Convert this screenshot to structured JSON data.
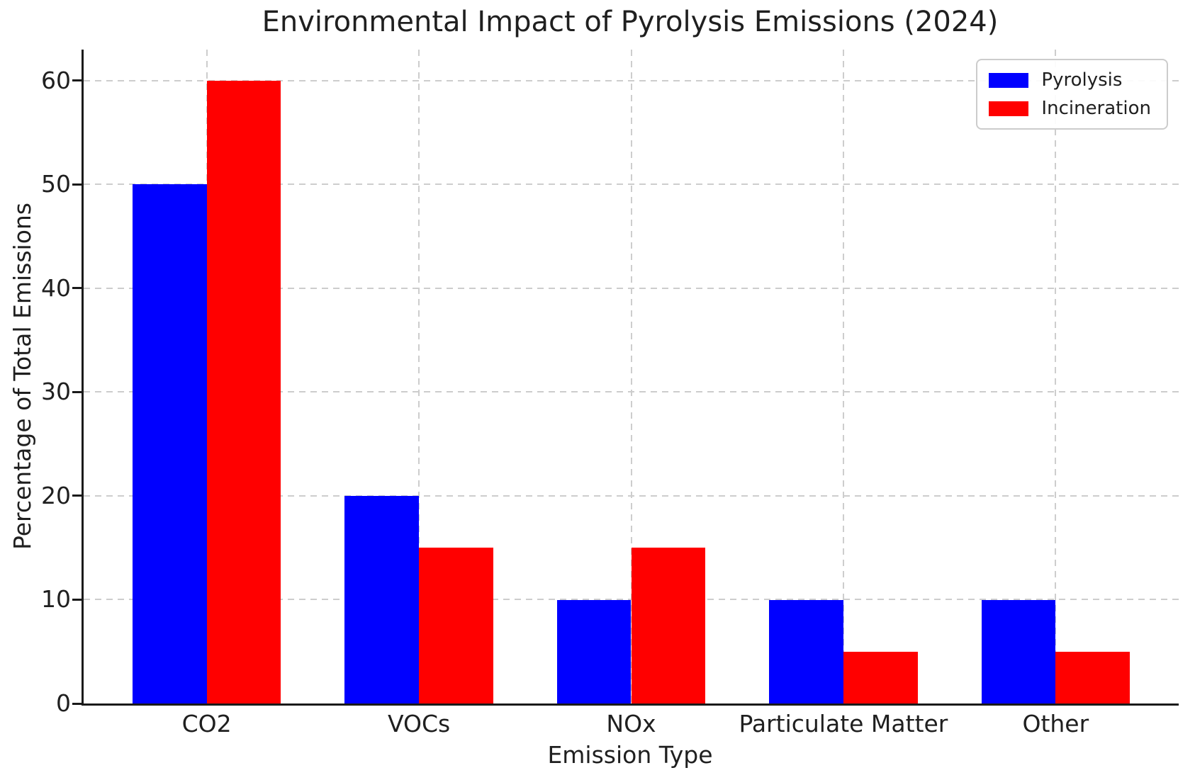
{
  "chart_data": {
    "type": "bar",
    "title": "Environmental Impact of Pyrolysis Emissions (2024)",
    "xlabel": "Emission Type",
    "ylabel": "Percentage of Total Emissions",
    "categories": [
      "CO2",
      "VOCs",
      "NOx",
      "Particulate Matter",
      "Other"
    ],
    "series": [
      {
        "name": "Pyrolysis",
        "color": "#0000ff",
        "values": [
          50,
          20,
          10,
          10,
          10
        ]
      },
      {
        "name": "Incineration",
        "color": "#ff0000",
        "values": [
          60,
          15,
          15,
          5,
          5
        ]
      }
    ],
    "ylim": [
      0,
      63
    ],
    "yticks": [
      0,
      10,
      20,
      30,
      40,
      50,
      60
    ],
    "bar_width_fraction": 0.35,
    "grid": "dashed, both axes, light gray, behind bars",
    "legend_position": "upper-right"
  },
  "colors": {
    "pyrolysis_blue": "#0000ff",
    "incineration_red": "#ff0000",
    "grid": "#cdcdcd",
    "text": "#1f1f1f",
    "spine": "#1a1a1a",
    "legend_border": "#cccccc",
    "background": "#ffffff"
  }
}
